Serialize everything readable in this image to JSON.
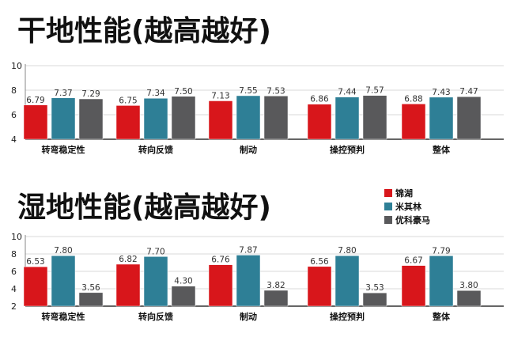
{
  "colors": {
    "jinhu": "#d8161b",
    "michelin": "#2e7f96",
    "yokohama": "#59595b"
  },
  "legend": {
    "items": [
      {
        "label": "锦湖",
        "color": "#d8161b"
      },
      {
        "label": "米其林",
        "color": "#2e7f96"
      },
      {
        "label": "优科豪马",
        "color": "#59595b"
      }
    ]
  },
  "chart_data": [
    {
      "type": "bar",
      "title": "干地性能(越高越好)",
      "categories": [
        "转弯稳定性",
        "转向反馈",
        "制动",
        "操控预判",
        "整体"
      ],
      "ylim": [
        4,
        10
      ],
      "yticks": [
        "4",
        "6",
        "8",
        "10"
      ],
      "series": [
        {
          "name": "锦湖",
          "color": "#d8161b",
          "values": [
            6.79,
            6.75,
            7.13,
            6.86,
            6.88
          ],
          "labels": [
            "6.79",
            "6.75",
            "7.13",
            "6.86",
            "6.88"
          ]
        },
        {
          "name": "米其林",
          "color": "#2e7f96",
          "values": [
            7.37,
            7.34,
            7.55,
            7.44,
            7.43
          ],
          "labels": [
            "7.37",
            "7.34",
            "7.55",
            "7.44",
            "7.43"
          ]
        },
        {
          "name": "优科豪马",
          "color": "#59595b",
          "values": [
            7.29,
            7.5,
            7.53,
            7.57,
            7.47
          ],
          "labels": [
            "7.29",
            "7.50",
            "7.53",
            "7.57",
            "7.47"
          ]
        }
      ],
      "grid": true,
      "legend": "right"
    },
    {
      "type": "bar",
      "title": "湿地性能(越高越好)",
      "categories": [
        "转弯稳定性",
        "转向反馈",
        "制动",
        "操控预判",
        "整体"
      ],
      "ylim": [
        2,
        10
      ],
      "yticks": [
        "2",
        "4",
        "6",
        "8",
        "10"
      ],
      "series": [
        {
          "name": "锦湖",
          "color": "#d8161b",
          "values": [
            6.53,
            6.82,
            6.76,
            6.56,
            6.67
          ],
          "labels": [
            "6.53",
            "6.82",
            "6.76",
            "6.56",
            "6.67"
          ]
        },
        {
          "name": "米其林",
          "color": "#2e7f96",
          "values": [
            7.8,
            7.7,
            7.87,
            7.8,
            7.79
          ],
          "labels": [
            "7.80",
            "7.70",
            "7.87",
            "7.80",
            "7.79"
          ]
        },
        {
          "name": "优科豪马",
          "color": "#59595b",
          "values": [
            3.56,
            4.3,
            3.82,
            3.53,
            3.8
          ],
          "labels": [
            "3.56",
            "4.30",
            "3.82",
            "3.53",
            "3.80"
          ]
        }
      ],
      "grid": true,
      "legend": "top-right"
    }
  ]
}
